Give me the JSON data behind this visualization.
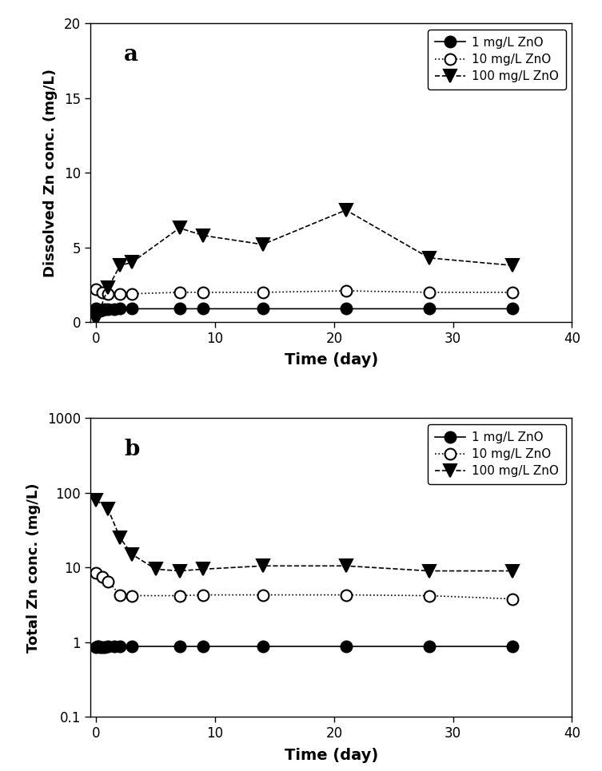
{
  "panel_a": {
    "label": "a",
    "ylabel": "Dissolved Zn conc. (mg/L)",
    "xlabel": "Time (day)",
    "ylim": [
      0,
      20
    ],
    "xlim": [
      -0.5,
      40
    ],
    "yticks": [
      0,
      5,
      10,
      15,
      20
    ],
    "xticks": [
      0,
      10,
      20,
      30,
      40
    ],
    "series": [
      {
        "label": "1 mg/L ZnO",
        "linestyle": "-",
        "marker": "o",
        "filled": true,
        "color": "black",
        "x": [
          0,
          0.1,
          0.2,
          0.3,
          0.5,
          0.7,
          1.0,
          1.5,
          2,
          3,
          7,
          9,
          14,
          21,
          28,
          35
        ],
        "y": [
          0.9,
          0.85,
          0.8,
          0.75,
          0.8,
          0.85,
          0.85,
          0.85,
          0.9,
          0.9,
          0.9,
          0.9,
          0.9,
          0.9,
          0.9,
          0.9
        ]
      },
      {
        "label": "10 mg/L ZnO",
        "linestyle": ":",
        "marker": "o",
        "filled": false,
        "color": "black",
        "x": [
          0,
          0.5,
          1,
          2,
          3,
          7,
          9,
          14,
          21,
          28,
          35
        ],
        "y": [
          2.2,
          2.0,
          1.9,
          1.9,
          1.9,
          2.0,
          2.0,
          2.0,
          2.1,
          2.0,
          2.0
        ]
      },
      {
        "label": "100 mg/L ZnO",
        "linestyle": "--",
        "marker": "v",
        "filled": true,
        "color": "black",
        "x": [
          0,
          1,
          2,
          3,
          7,
          9,
          14,
          21,
          28,
          35
        ],
        "y": [
          0.2,
          2.3,
          3.8,
          4.0,
          6.3,
          5.8,
          5.2,
          7.5,
          4.3,
          3.8
        ]
      }
    ]
  },
  "panel_b": {
    "label": "b",
    "ylabel": "Total Zn conc. (mg/L)",
    "xlabel": "Time (day)",
    "ylim": [
      0.1,
      1000
    ],
    "xlim": [
      -0.5,
      40
    ],
    "xticks": [
      0,
      10,
      20,
      30,
      40
    ],
    "yticks_log": [
      0.1,
      1,
      10,
      100,
      1000
    ],
    "series": [
      {
        "label": "1 mg/L ZnO",
        "linestyle": "-",
        "marker": "o",
        "filled": true,
        "color": "black",
        "x": [
          0,
          0.1,
          0.2,
          0.3,
          0.5,
          0.7,
          1.0,
          1.5,
          2,
          3,
          7,
          9,
          14,
          21,
          28,
          35
        ],
        "y": [
          0.85,
          0.88,
          0.88,
          0.85,
          0.85,
          0.85,
          0.88,
          0.88,
          0.88,
          0.88,
          0.88,
          0.88,
          0.88,
          0.88,
          0.88,
          0.88
        ]
      },
      {
        "label": "10 mg/L ZnO",
        "linestyle": ":",
        "marker": "o",
        "filled": false,
        "color": "black",
        "x": [
          0,
          0.5,
          1,
          2,
          3,
          7,
          9,
          14,
          21,
          28,
          35
        ],
        "y": [
          8.5,
          7.5,
          6.5,
          4.3,
          4.2,
          4.2,
          4.3,
          4.3,
          4.3,
          4.2,
          3.8
        ]
      },
      {
        "label": "100 mg/L ZnO",
        "linestyle": "--",
        "marker": "v",
        "filled": true,
        "color": "black",
        "x": [
          0,
          1,
          2,
          3,
          5,
          7,
          9,
          14,
          21,
          28,
          35
        ],
        "y": [
          80,
          60,
          25,
          15,
          9.5,
          9.0,
          9.5,
          10.5,
          10.5,
          9.0,
          9.0
        ]
      }
    ]
  },
  "fig_width": 7.53,
  "fig_height": 9.65,
  "dpi": 100
}
